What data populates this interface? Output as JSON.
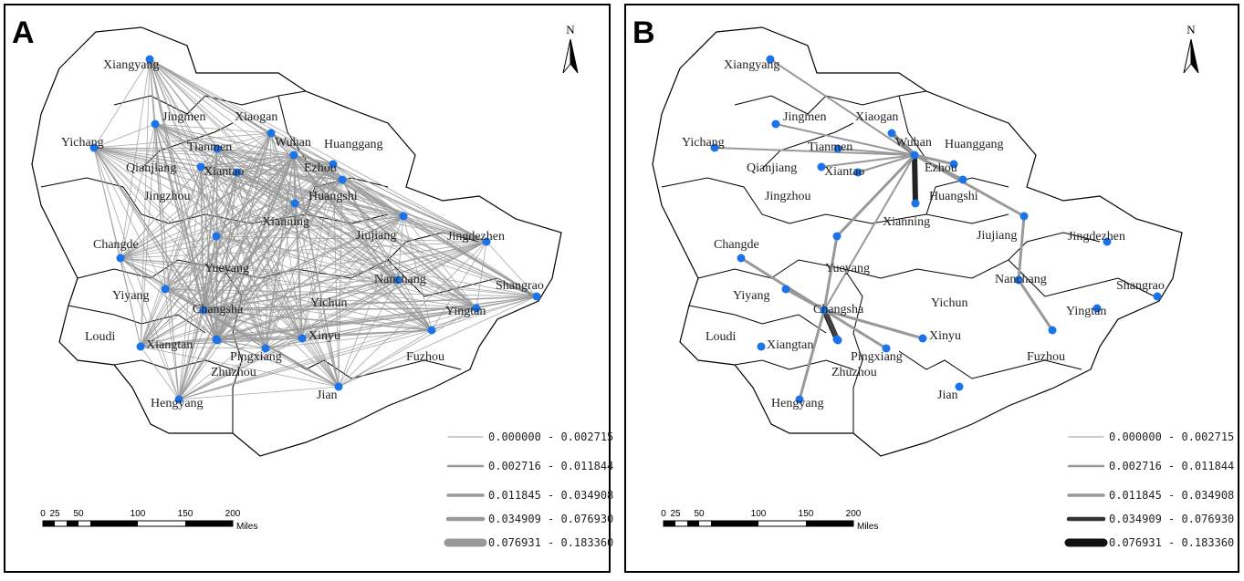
{
  "panels": [
    {
      "label": "A",
      "north": "N",
      "cities": [
        "Xiangyang",
        "Jingmen",
        "Xiaogan",
        "Yichang",
        "Tianmen",
        "Wuhan",
        "Huanggang",
        "Qianjiang",
        "Xiantao",
        "Ezhou",
        "Jingzhou",
        "Huangshi",
        "Xianning",
        "Jiujiang",
        "Jingdezhen",
        "Changde",
        "Yueyang",
        "Nanchang",
        "Shangrao",
        "Yiyang",
        "Changsha",
        "Yichun",
        "Yingtan",
        "Loudi",
        "Xiangtan",
        "Xinyu",
        "Pingxiang",
        "Zhuzhou",
        "Fuzhou",
        "Jian",
        "Hengyang"
      ],
      "legend": [
        "0.000000 - 0.002715",
        "0.002716 - 0.011844",
        "0.011845 - 0.034908",
        "0.034909 - 0.076930",
        "0.076931 - 0.183360"
      ],
      "scale_bar": {
        "ticks": [
          "0",
          "25",
          "50",
          "100",
          "150",
          "200"
        ],
        "unit": "Miles"
      }
    },
    {
      "label": "B",
      "north": "N",
      "cities": [
        "Xiangyang",
        "Jingmen",
        "Xiaogan",
        "Yichang",
        "Tianmen",
        "Wuhan",
        "Huanggang",
        "Qianjiang",
        "Xiantao",
        "Ezhou",
        "Jingzhou",
        "Huangshi",
        "Xianning",
        "Jiujiang",
        "Jingdezhen",
        "Changde",
        "Yueyang",
        "Nanchang",
        "Shangrao",
        "Yiyang",
        "Changsha",
        "Yichun",
        "Yingtan",
        "Loudi",
        "Xiangtan",
        "Xinyu",
        "Pingxiang",
        "Zhuzhou",
        "Fuzhou",
        "Jian",
        "Hengyang"
      ],
      "legend": [
        "0.000000 - 0.002715",
        "0.002716 - 0.011844",
        "0.011845 - 0.034908",
        "0.034909 - 0.076930",
        "0.076931 - 0.183360"
      ],
      "scale_bar": {
        "ticks": [
          "0",
          "25",
          "50",
          "100",
          "150",
          "200"
        ],
        "unit": "Miles"
      }
    }
  ]
}
